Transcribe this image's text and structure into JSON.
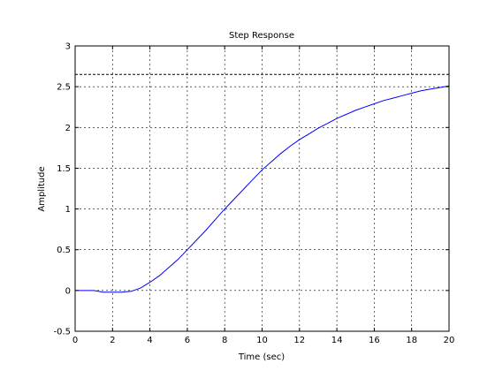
{
  "chart_data": {
    "type": "line",
    "title": "Step Response",
    "xlabel": "Time (sec)",
    "ylabel": "Amplitude",
    "xlim": [
      0,
      20
    ],
    "ylim": [
      -0.5,
      3
    ],
    "xticks": [
      0,
      2,
      4,
      6,
      8,
      10,
      12,
      14,
      16,
      18,
      20
    ],
    "yticks": [
      -0.5,
      0,
      0.5,
      1,
      1.5,
      2,
      2.5,
      3
    ],
    "xtick_labels": [
      "0",
      "2",
      "4",
      "6",
      "8",
      "10",
      "12",
      "14",
      "16",
      "18",
      "20"
    ],
    "ytick_labels": [
      "-0.5",
      "0",
      "0.5",
      "1",
      "1.5",
      "2",
      "2.5",
      "3"
    ],
    "grid": true,
    "series": [
      {
        "color": "#0000ff",
        "x": [
          0,
          0.5,
          1,
          1.5,
          2,
          2.5,
          3,
          3.5,
          4,
          4.5,
          5,
          5.5,
          6,
          6.5,
          7,
          7.5,
          8,
          8.5,
          9,
          9.5,
          10,
          10.5,
          11,
          11.5,
          12,
          12.5,
          13,
          13.5,
          14,
          14.5,
          15,
          15.5,
          16,
          16.5,
          17,
          17.5,
          18,
          18.5,
          19,
          19.5,
          20
        ],
        "y": [
          0,
          0,
          0,
          -0.02,
          -0.02,
          -0.02,
          -0.01,
          0.03,
          0.1,
          0.18,
          0.28,
          0.38,
          0.5,
          0.62,
          0.74,
          0.87,
          1.0,
          1.12,
          1.24,
          1.36,
          1.48,
          1.58,
          1.68,
          1.77,
          1.85,
          1.92,
          1.99,
          2.05,
          2.11,
          2.16,
          2.21,
          2.25,
          2.29,
          2.33,
          2.36,
          2.39,
          2.42,
          2.45,
          2.47,
          2.49,
          2.51
        ]
      }
    ],
    "reference_line": {
      "y": 2.65,
      "style": "dashed",
      "color": "#000000"
    }
  }
}
